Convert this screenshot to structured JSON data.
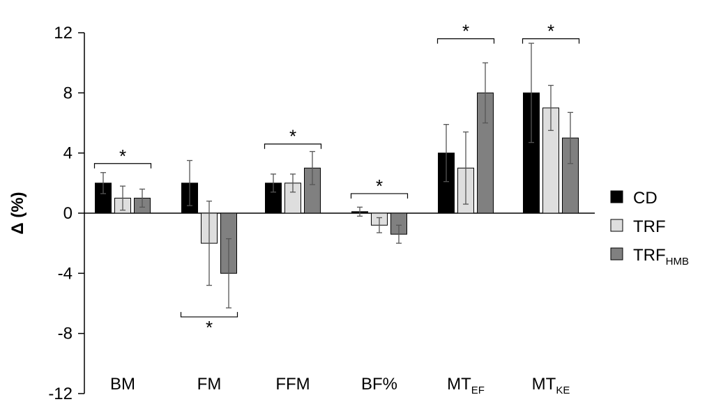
{
  "chart_data": {
    "type": "bar",
    "title": "",
    "ylabel": "Δ (%)",
    "ylim": [
      -12,
      12
    ],
    "yticks": [
      12,
      8,
      4,
      0,
      -4,
      -8,
      -12
    ],
    "grid": false,
    "legend_position": "right",
    "categories": [
      {
        "main": "BM",
        "sub": ""
      },
      {
        "main": "FM",
        "sub": ""
      },
      {
        "main": "FFM",
        "sub": ""
      },
      {
        "main": "BF%",
        "sub": ""
      },
      {
        "main": "MT",
        "sub": "EF"
      },
      {
        "main": "MT",
        "sub": "KE"
      }
    ],
    "series": [
      {
        "name": "CD",
        "legend_main": "CD",
        "legend_sub": "",
        "color": "#000000",
        "values": [
          2,
          2,
          2,
          0.1,
          4,
          8
        ],
        "errors": [
          0.7,
          1.5,
          0.6,
          0.3,
          1.9,
          3.3
        ]
      },
      {
        "name": "TRF",
        "legend_main": "TRF",
        "legend_sub": "",
        "color": "#dedede",
        "values": [
          1,
          -2,
          2,
          -0.8,
          3,
          7
        ],
        "errors": [
          0.8,
          2.8,
          0.6,
          0.5,
          2.4,
          1.5
        ]
      },
      {
        "name": "TRFHMB",
        "legend_main": "TRF",
        "legend_sub": "HMB",
        "color": "#808080",
        "values": [
          1,
          -4,
          3,
          -1.4,
          8,
          5
        ],
        "errors": [
          0.6,
          2.3,
          1.1,
          0.6,
          2.0,
          1.7
        ]
      }
    ],
    "annotations": [
      {
        "category": 0,
        "text": "*",
        "value": 3.3,
        "side": "above"
      },
      {
        "category": 1,
        "text": "*",
        "value": -6.9,
        "side": "below"
      },
      {
        "category": 2,
        "text": "*",
        "value": 4.6,
        "side": "above"
      },
      {
        "category": 3,
        "text": "*",
        "value": 1.3,
        "side": "above"
      },
      {
        "category": 4,
        "text": "*",
        "value": 11.6,
        "side": "above"
      },
      {
        "category": 5,
        "text": "*",
        "value": 11.6,
        "side": "above"
      }
    ]
  }
}
